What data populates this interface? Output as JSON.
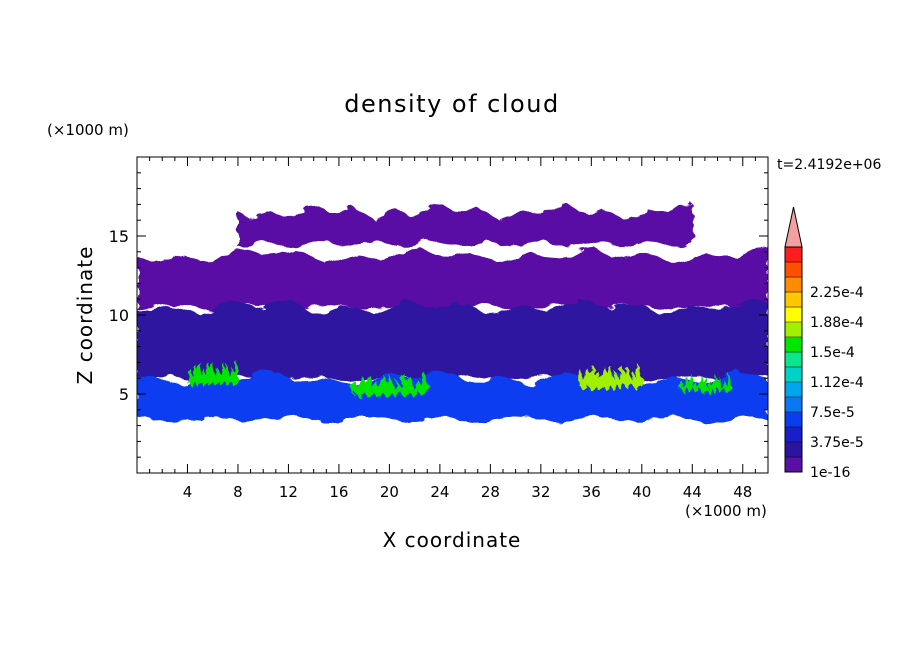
{
  "chart_data": {
    "type": "heatmap",
    "title": "density of cloud",
    "xlabel": "X coordinate",
    "ylabel": "Z coordinate",
    "x_unit": "(×1000 m)",
    "y_unit": "(×1000 m)",
    "time_label": "t=2.4192e+06",
    "xlim": [
      0,
      50
    ],
    "ylim": [
      0,
      20
    ],
    "x_ticks": [
      4,
      8,
      12,
      16,
      20,
      24,
      28,
      32,
      36,
      40,
      44,
      48
    ],
    "y_ticks": [
      5,
      10,
      15
    ],
    "colorbar": {
      "labels": [
        "1e-16",
        "3.75e-5",
        "7.5e-5",
        "1.12e-4",
        "1.5e-4",
        "1.88e-4",
        "2.25e-4"
      ],
      "levels": [
        1e-16,
        1.875e-05,
        3.75e-05,
        5.625e-05,
        7.5e-05,
        9.375e-05,
        0.0001125,
        0.00013125,
        0.00015,
        0.00016875,
        0.0001875,
        0.00020625,
        0.000225,
        0.00024375
      ],
      "colors": [
        "#5a0fa5",
        "#2d14a0",
        "#1a1ec8",
        "#0a3cf0",
        "#0a78f0",
        "#00a5f0",
        "#00d2c8",
        "#0ae68c",
        "#00e600",
        "#a0f000",
        "#ffff00",
        "#ffc800",
        "#ff8c00",
        "#ff5000",
        "#ff1e1e"
      ],
      "extend_color": "#f5a0a0"
    },
    "cloud_regions": [
      {
        "name": "upper-layer",
        "x": [
          0,
          50
        ],
        "z": [
          10.5,
          14
        ],
        "level": 0
      },
      {
        "name": "cirrus-patches",
        "x": [
          8,
          44
        ],
        "z": [
          14.5,
          16.8
        ],
        "level": 0
      },
      {
        "name": "mid-layer",
        "x": [
          0,
          50
        ],
        "z": [
          6,
          10.5
        ],
        "level": 1
      },
      {
        "name": "low-layer",
        "x": [
          0,
          50
        ],
        "z": [
          3.4,
          6
        ],
        "level": 3
      },
      {
        "name": "core-1",
        "x": [
          4,
          8
        ],
        "z": [
          5.6,
          6.6
        ],
        "level": 8
      },
      {
        "name": "core-2",
        "x": [
          17,
          23
        ],
        "z": [
          5,
          5.8
        ],
        "level": 8
      },
      {
        "name": "core-3",
        "x": [
          35,
          40
        ],
        "z": [
          5.4,
          6.4
        ],
        "level": 9
      },
      {
        "name": "core-4",
        "x": [
          43,
          47
        ],
        "z": [
          5.2,
          5.8
        ],
        "level": 8
      }
    ]
  }
}
